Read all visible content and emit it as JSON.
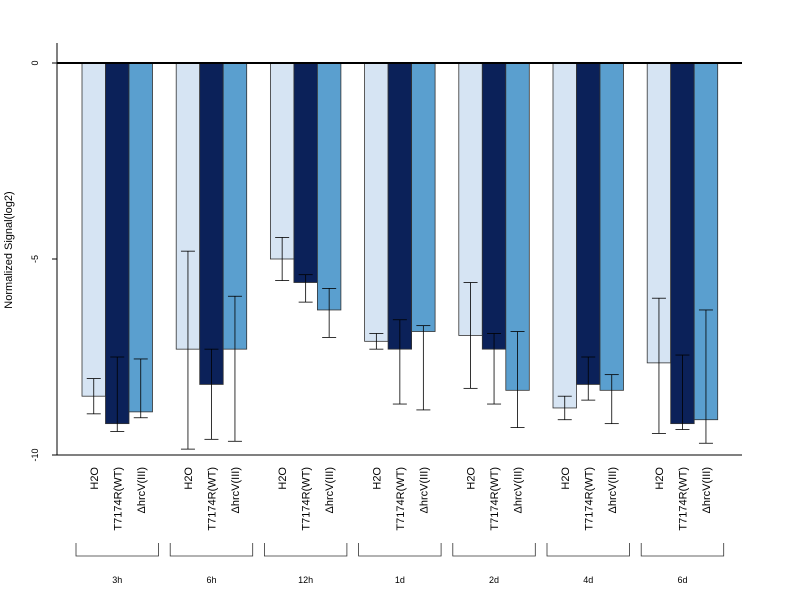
{
  "chart_data": {
    "type": "bar",
    "ylabel": "Normalized Signal(log2)",
    "ylim": [
      -10,
      0.5
    ],
    "yticks": [
      0,
      -5,
      -10
    ],
    "series": [
      {
        "name": "H2O",
        "color": "#d6e4f3"
      },
      {
        "name": "T7174R(WT)",
        "color": "#0b2159"
      },
      {
        "name": "ΔhrcV(III)",
        "color": "#5a9fcf"
      }
    ],
    "groups": [
      {
        "label": "3h",
        "values": [
          -8.5,
          -9.2,
          -8.9
        ],
        "err_low": [
          -8.95,
          -9.4,
          -9.05
        ],
        "err_high": [
          -8.05,
          -7.5,
          -7.55
        ]
      },
      {
        "label": "6h",
        "values": [
          -7.3,
          -8.2,
          -7.3
        ],
        "err_low": [
          -9.85,
          -9.6,
          -9.65
        ],
        "err_high": [
          -4.8,
          -7.3,
          -5.95
        ]
      },
      {
        "label": "12h",
        "values": [
          -5.0,
          -5.6,
          -6.3
        ],
        "err_low": [
          -5.55,
          -6.1,
          -7.0
        ],
        "err_high": [
          -4.45,
          -5.4,
          -5.75
        ]
      },
      {
        "label": "1d",
        "values": [
          -7.1,
          -7.3,
          -6.85
        ],
        "err_low": [
          -7.3,
          -8.7,
          -8.85
        ],
        "err_high": [
          -6.9,
          -6.55,
          -6.7
        ]
      },
      {
        "label": "2d",
        "values": [
          -6.95,
          -7.3,
          -8.35
        ],
        "err_low": [
          -8.3,
          -8.7,
          -9.3
        ],
        "err_high": [
          -5.6,
          -6.9,
          -6.85
        ]
      },
      {
        "label": "4d",
        "values": [
          -8.8,
          -8.2,
          -8.35
        ],
        "err_low": [
          -9.1,
          -8.6,
          -9.2
        ],
        "err_high": [
          -8.5,
          -7.5,
          -7.95
        ]
      },
      {
        "label": "6d",
        "values": [
          -7.65,
          -9.2,
          -9.1
        ],
        "err_low": [
          -9.45,
          -9.35,
          -9.7
        ],
        "err_high": [
          -6.0,
          -7.45,
          -6.3
        ]
      }
    ]
  }
}
